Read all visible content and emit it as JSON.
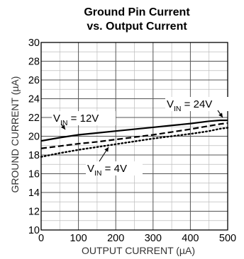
{
  "chart_data": {
    "type": "line",
    "title": [
      "Ground Pin Current",
      "vs. Output Current"
    ],
    "xlabel": "OUTPUT CURRENT (µA)",
    "ylabel": "GROUND CURRENT (µA)",
    "xlim": [
      0,
      500
    ],
    "ylim": [
      10,
      30
    ],
    "x_ticks": [
      0,
      100,
      200,
      300,
      400,
      500
    ],
    "y_ticks": [
      10,
      12,
      14,
      16,
      18,
      20,
      22,
      24,
      26,
      28,
      30
    ],
    "minor_x_ticks": [
      50,
      150,
      250,
      350,
      450
    ],
    "minor_y_ticks": [
      11,
      13,
      15,
      17,
      19,
      21,
      23,
      25,
      27,
      29
    ],
    "grid": true,
    "x": [
      0,
      50,
      100,
      150,
      200,
      250,
      300,
      350,
      400,
      450,
      480,
      500
    ],
    "series": [
      {
        "name": "24V",
        "label": {
          "main": "V",
          "sub": "IN",
          "rest": " = 24V"
        },
        "style": "solid",
        "color": "#000000",
        "values": [
          19.5,
          19.85,
          20.15,
          20.35,
          20.55,
          20.75,
          20.95,
          21.15,
          21.35,
          21.6,
          21.7,
          21.7
        ]
      },
      {
        "name": "12V",
        "label": {
          "main": "V",
          "sub": "IN",
          "rest": " = 12V"
        },
        "style": "dashed",
        "color": "#000000",
        "values": [
          18.7,
          18.95,
          19.2,
          19.4,
          19.65,
          19.9,
          20.15,
          20.45,
          20.75,
          21.1,
          21.3,
          21.4
        ]
      },
      {
        "name": "4V",
        "label": {
          "main": "V",
          "sub": "IN",
          "rest": " = 4V"
        },
        "style": "dotted",
        "color": "#000000",
        "values": [
          17.8,
          18.2,
          18.55,
          18.85,
          19.15,
          19.45,
          19.75,
          20.0,
          20.25,
          20.55,
          20.8,
          20.9
        ]
      }
    ]
  }
}
